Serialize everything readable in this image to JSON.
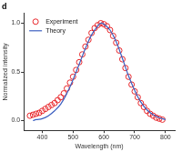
{
  "chart_data": {
    "type": "line",
    "title": "d",
    "x_label": "Wavelength (nm)",
    "y_label": "Normalized intensity",
    "xlim": [
      340,
      830
    ],
    "xticks": [
      400,
      500,
      600,
      700,
      800
    ],
    "ylim": [
      -0.1,
      1.1
    ],
    "yticks": [
      {
        "value": 0,
        "label": "0.0"
      },
      {
        "value": 0.5,
        "label": "0.5"
      },
      {
        "value": 1,
        "label": "1.0"
      }
    ],
    "grid": false,
    "legend": "upper left",
    "series": [
      {
        "name": "Experiment",
        "type": "scatter",
        "color": "#e8262a",
        "marker": "open_circle",
        "x": [
          360,
          370,
          380,
          390,
          400,
          410,
          420,
          430,
          440,
          450,
          460,
          470,
          480,
          490,
          500,
          510,
          520,
          530,
          540,
          550,
          560,
          570,
          580,
          590,
          600,
          610,
          620,
          630,
          640,
          650,
          660,
          670,
          680,
          690,
          700,
          710,
          720,
          730,
          740,
          750,
          760,
          770,
          780,
          790
        ],
        "values": [
          0.05,
          0.06,
          0.07,
          0.08,
          0.1,
          0.12,
          0.14,
          0.16,
          0.18,
          0.21,
          0.24,
          0.28,
          0.33,
          0.39,
          0.45,
          0.52,
          0.6,
          0.68,
          0.76,
          0.83,
          0.9,
          0.95,
          0.98,
          1.0,
          0.99,
          0.97,
          0.93,
          0.87,
          0.8,
          0.72,
          0.63,
          0.54,
          0.45,
          0.37,
          0.3,
          0.24,
          0.18,
          0.14,
          0.1,
          0.07,
          0.05,
          0.03,
          0.02,
          0.01
        ]
      },
      {
        "name": "Theory",
        "type": "line",
        "color": "#3b5fc0",
        "line_style": "solid",
        "x": [
          370,
          380,
          400,
          420,
          440,
          460,
          480,
          500,
          520,
          540,
          560,
          580,
          590,
          600,
          620,
          640,
          660,
          680,
          700,
          720,
          740,
          760,
          780,
          800
        ],
        "values": [
          0.0,
          0.01,
          0.02,
          0.05,
          0.1,
          0.17,
          0.28,
          0.42,
          0.58,
          0.74,
          0.88,
          0.97,
          1.0,
          0.99,
          0.93,
          0.81,
          0.64,
          0.46,
          0.31,
          0.19,
          0.11,
          0.06,
          0.03,
          0.01
        ]
      }
    ]
  }
}
